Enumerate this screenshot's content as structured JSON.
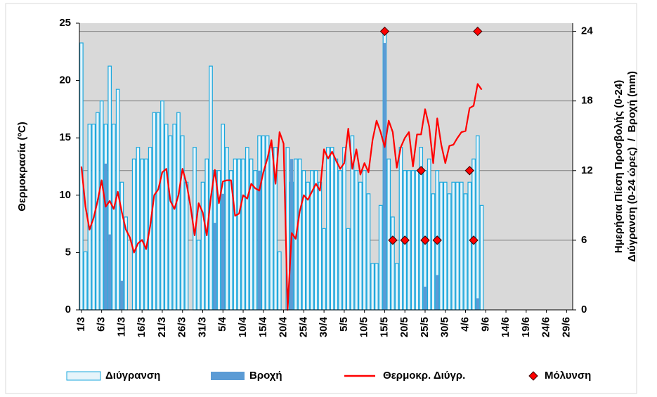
{
  "chart_data": {
    "type": "combo",
    "ylabel": "Θερμοκρασία (ºC)",
    "y2label": [
      "Ημερήσια Πίεση Προσβολής (0-24)",
      "Διύγρανση (0-24 ώρες)  /  Βροχή (mm)"
    ],
    "categories": [
      "1/3",
      null,
      null,
      null,
      null,
      "6/3",
      null,
      null,
      null,
      null,
      "11/3",
      null,
      null,
      null,
      null,
      "16/3",
      null,
      null,
      null,
      null,
      "21/3",
      null,
      null,
      null,
      null,
      "26/3",
      null,
      null,
      null,
      null,
      "31/3",
      null,
      null,
      null,
      null,
      "5/4",
      null,
      null,
      null,
      null,
      "10/4",
      null,
      null,
      null,
      null,
      "15/4",
      null,
      null,
      null,
      null,
      "20/4",
      null,
      null,
      null,
      null,
      "25/4",
      null,
      null,
      null,
      null,
      "30/4",
      null,
      null,
      null,
      null,
      "5/5",
      null,
      null,
      null,
      null,
      "10/5",
      null,
      null,
      null,
      null,
      "15/5",
      null,
      null,
      null,
      null,
      "20/5",
      null,
      null,
      null,
      null,
      "25/5",
      null,
      null,
      null,
      null,
      "30/5",
      null,
      null,
      null,
      null,
      "4/6",
      null,
      null,
      null,
      null,
      "9/6",
      null,
      null,
      null,
      null,
      "14/6",
      null,
      null,
      null,
      null,
      "19/6",
      null,
      null,
      null,
      null,
      "24/6",
      null,
      null,
      null,
      null,
      "29/6",
      null
    ],
    "series": [
      {
        "name": "Διύγρανση",
        "type": "bar",
        "axis": "y2",
        "color": "#e6f4fa",
        "edge": "#1aa7dd",
        "values": [
          23,
          5,
          16,
          16,
          17,
          18,
          16,
          21,
          16,
          19,
          11,
          8,
          0,
          13,
          14,
          13,
          13,
          14,
          17,
          17,
          18,
          16,
          15,
          16,
          17,
          15,
          11,
          0,
          14,
          6,
          11,
          13,
          21,
          12,
          12,
          16,
          14,
          12,
          13,
          13,
          13,
          14,
          13,
          12,
          15,
          15,
          15,
          14,
          14,
          5,
          0,
          14,
          11,
          13,
          13,
          12,
          11,
          12,
          12,
          11,
          7,
          14,
          14,
          13,
          12,
          14,
          7,
          15,
          12,
          11,
          12,
          10,
          4,
          4,
          9,
          24,
          13,
          8,
          4,
          14,
          12,
          12,
          12,
          12,
          14,
          12,
          13,
          10,
          12,
          11,
          11,
          10,
          11,
          11,
          11,
          10,
          11,
          13,
          15,
          9,
          null,
          null,
          null,
          null,
          null,
          null,
          null,
          null,
          null,
          null,
          null,
          null,
          null,
          null,
          null,
          null,
          null,
          null,
          null,
          null,
          null,
          null
        ]
      },
      {
        "name": "Βροχή",
        "type": "bar",
        "axis": "y2",
        "color": "#5b9bd5",
        "values": [
          0,
          0,
          0,
          0,
          0,
          0,
          12.6,
          6.5,
          0,
          0,
          2.5,
          0,
          0,
          0,
          0,
          0,
          0,
          0,
          0,
          0,
          0,
          0,
          0,
          0,
          0,
          0,
          0,
          0,
          0,
          0,
          0,
          0,
          0,
          7.5,
          0,
          10,
          0,
          0,
          0,
          0,
          0,
          0,
          0,
          0,
          12,
          0,
          0,
          0,
          0,
          0,
          0,
          0,
          13,
          0,
          0,
          0,
          0,
          0,
          0,
          0,
          0,
          0,
          0,
          0,
          0,
          0,
          0,
          0,
          0,
          0,
          0,
          0,
          0,
          0,
          0,
          23,
          0,
          0,
          0,
          0,
          0,
          0,
          0,
          0,
          0,
          2,
          0,
          0,
          3,
          0,
          0,
          0,
          0,
          0,
          0,
          0,
          0,
          0,
          1,
          0,
          null,
          null,
          null,
          null,
          null,
          null,
          null,
          null,
          null,
          null,
          null,
          null,
          null,
          null,
          null,
          null,
          null,
          null,
          null,
          null,
          null,
          null
        ]
      },
      {
        "name": "Θερμοκρ. Διύγρ.",
        "type": "line",
        "color": "#ff0000",
        "values": [
          12.5,
          9,
          7,
          8,
          9.5,
          11.3,
          9,
          9.5,
          8.8,
          10.3,
          8.5,
          7,
          6.3,
          5,
          5.8,
          6.1,
          5.3,
          7.3,
          10,
          10.5,
          12,
          12.3,
          9.5,
          8.8,
          10,
          12.3,
          11,
          9,
          6.5,
          9.3,
          8.5,
          6.5,
          9.8,
          12.2,
          9.3,
          11.2,
          11.3,
          11.3,
          8.2,
          8.4,
          10,
          9.7,
          11,
          10.6,
          10.4,
          12,
          13.2,
          14.8,
          11,
          15.5,
          14.5,
          0,
          6.7,
          6.2,
          8.6,
          10,
          9.6,
          10.3,
          11,
          10.4,
          14,
          13.2,
          13.8,
          13,
          12.3,
          12.8,
          15.8,
          12.3,
          14,
          11.8,
          12.8,
          12,
          14.8,
          16.5,
          15.5,
          14.2,
          16.5,
          15.5,
          12.4,
          14.2,
          15,
          15.5,
          12.5,
          15.3,
          15.3,
          17.5,
          16,
          12.8,
          16.7,
          14.4,
          12.8,
          14.3,
          14.4,
          15,
          15.5,
          15.6,
          17.6,
          17.8,
          19.7,
          19.2,
          null,
          null,
          null,
          null,
          null,
          null,
          null,
          null,
          null,
          null,
          null,
          null,
          null,
          null,
          null,
          null,
          null,
          null,
          null,
          null,
          null,
          null
        ]
      },
      {
        "name": "Μόλυνση",
        "type": "scatter",
        "axis": "y2",
        "color": "#ff0000",
        "values": [
          null,
          null,
          null,
          null,
          null,
          null,
          null,
          null,
          null,
          null,
          null,
          null,
          null,
          null,
          null,
          null,
          null,
          null,
          null,
          null,
          null,
          null,
          null,
          null,
          null,
          null,
          null,
          null,
          null,
          null,
          null,
          null,
          null,
          null,
          null,
          null,
          null,
          null,
          null,
          null,
          null,
          null,
          null,
          null,
          null,
          null,
          null,
          null,
          null,
          null,
          null,
          null,
          null,
          null,
          null,
          null,
          null,
          null,
          null,
          null,
          null,
          null,
          null,
          null,
          null,
          null,
          null,
          null,
          null,
          null,
          null,
          null,
          null,
          null,
          null,
          24,
          null,
          6,
          null,
          null,
          6,
          null,
          null,
          null,
          12,
          6,
          null,
          null,
          6,
          null,
          null,
          null,
          null,
          null,
          null,
          null,
          12,
          6,
          24,
          null,
          null,
          null,
          null,
          null,
          null,
          null,
          null,
          null,
          null,
          null,
          null,
          null,
          null,
          null,
          null,
          null,
          null,
          null,
          null,
          null,
          null,
          null
        ]
      }
    ],
    "ylim": [
      0,
      25
    ],
    "yticks": [
      0,
      5,
      10,
      15,
      20,
      25
    ],
    "y2lim": [
      0,
      24.7
    ],
    "y2ticks": [
      0,
      6,
      12,
      18,
      24
    ],
    "grid": true,
    "legend": "bottom"
  }
}
